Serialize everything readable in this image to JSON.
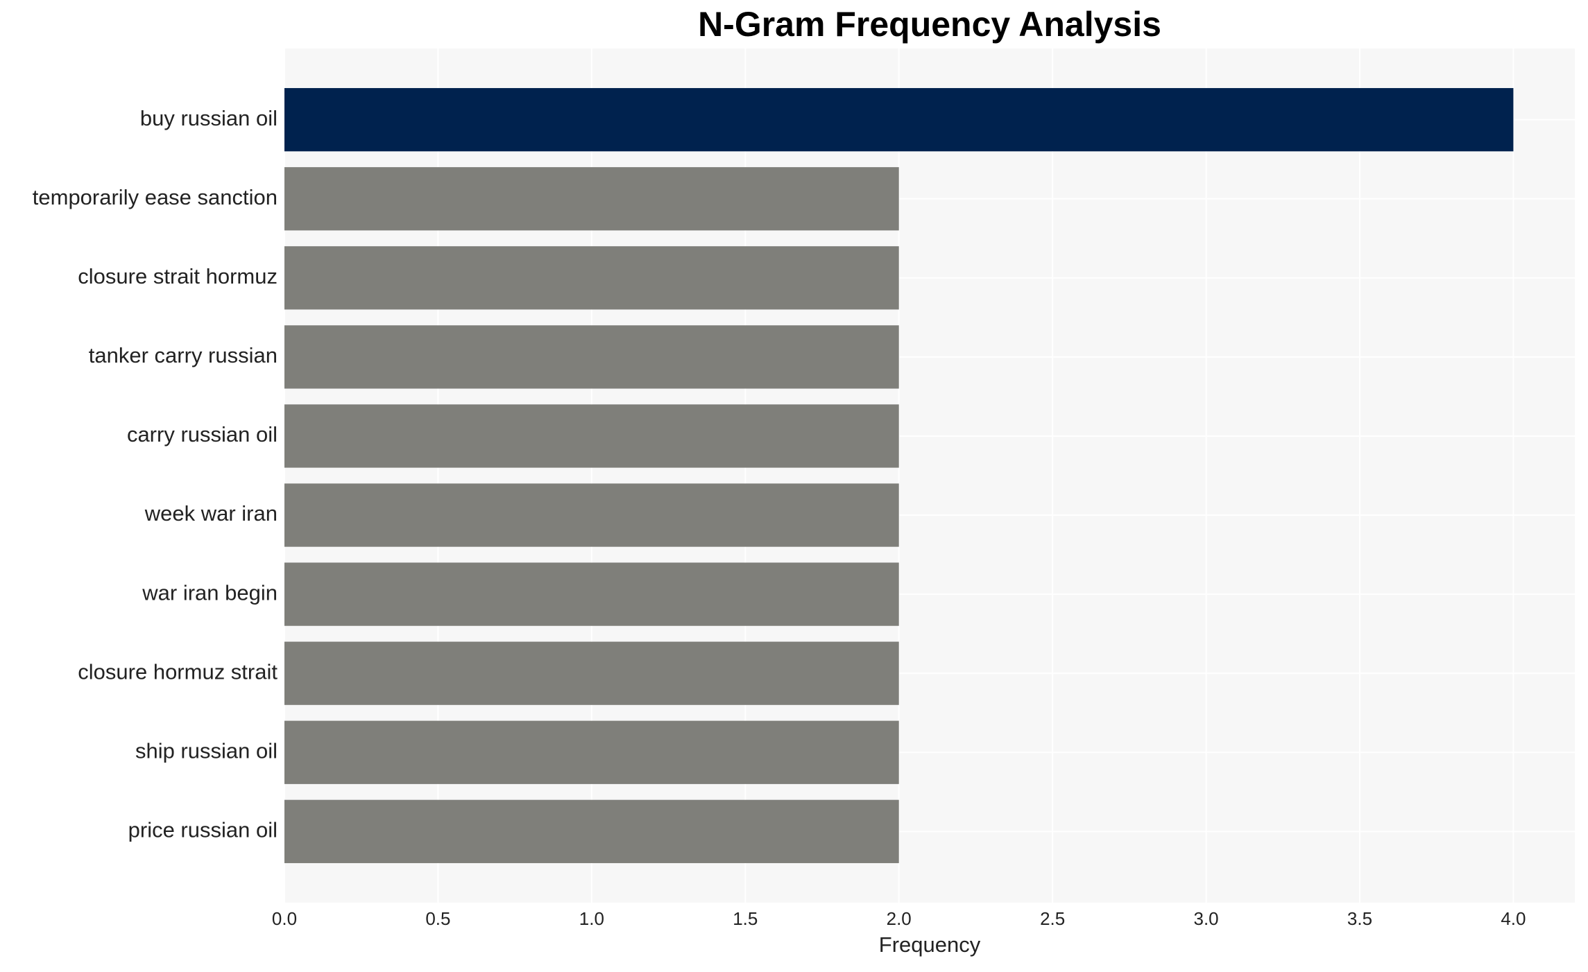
{
  "chart_data": {
    "type": "barh",
    "title": "N-Gram Frequency Analysis",
    "x_label": "Frequency",
    "categories": [
      "buy russian oil",
      "temporarily ease sanction",
      "closure strait hormuz",
      "tanker carry russian",
      "carry russian oil",
      "week war iran",
      "war iran begin",
      "closure hormuz strait",
      "ship russian oil",
      "price russian oil"
    ],
    "values": [
      4,
      2,
      2,
      2,
      2,
      2,
      2,
      2,
      2,
      2
    ],
    "colors": [
      "#00224e",
      "#7f7f7a",
      "#7f7f7a",
      "#7f7f7a",
      "#7f7f7a",
      "#7f7f7a",
      "#7f7f7a",
      "#7f7f7a",
      "#7f7f7a",
      "#7f7f7a"
    ],
    "xlim": [
      0,
      4.2
    ],
    "xticks": [
      {
        "value": 0,
        "label": "0.0"
      },
      {
        "value": 0.5,
        "label": "0.5"
      },
      {
        "value": 1,
        "label": "1.0"
      },
      {
        "value": 1.5,
        "label": "1.5"
      },
      {
        "value": 2,
        "label": "2.0"
      },
      {
        "value": 2.5,
        "label": "2.5"
      },
      {
        "value": 3,
        "label": "3.0"
      },
      {
        "value": 3.5,
        "label": "3.5"
      },
      {
        "value": 4,
        "label": "4.0"
      }
    ],
    "grid": true
  }
}
